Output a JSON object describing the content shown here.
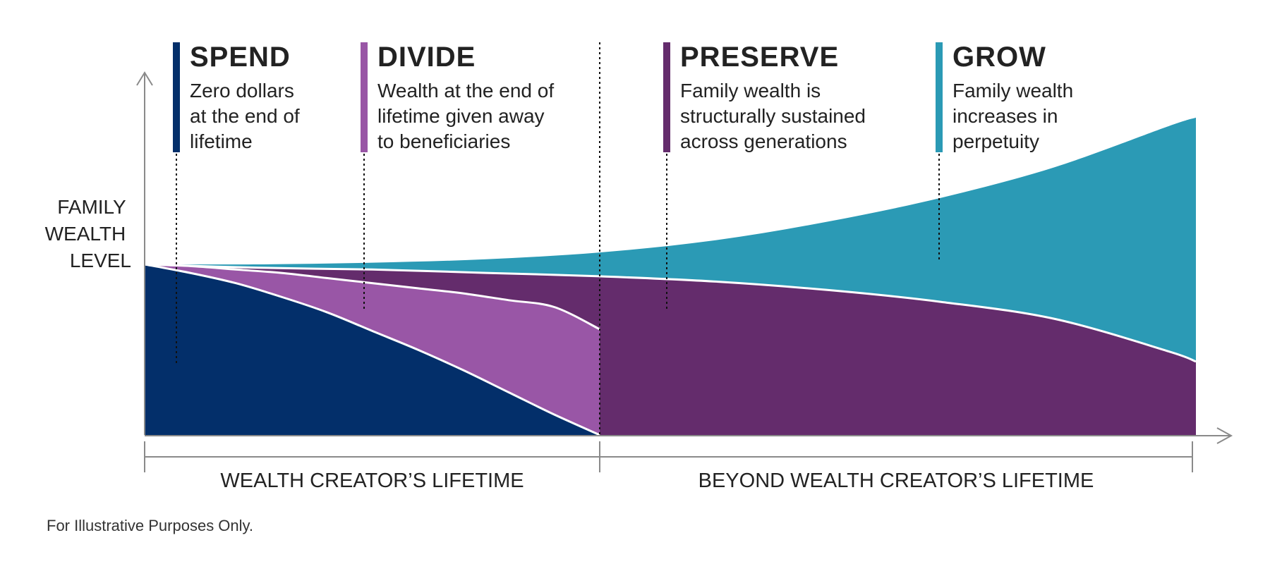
{
  "chart_data": {
    "type": "area",
    "ylabel": [
      "FAMILY",
      "WEALTH",
      "LEVEL"
    ],
    "phases": [
      {
        "title": "WEALTH CREATOR’S LIFETIME"
      },
      {
        "title": "BEYOND WEALTH CREATOR’S LIFETIME"
      }
    ],
    "strategies": [
      {
        "name": "SPEND",
        "lines": [
          "Zero dollars",
          "at the end of",
          "lifetime"
        ],
        "color": "#032f6a",
        "x": [
          0,
          0.1,
          0.2,
          0.3,
          0.4,
          0.5,
          0.6,
          0.7,
          0.8,
          0.9,
          1.0
        ],
        "y": [
          1.0,
          0.95,
          0.89,
          0.81,
          0.72,
          0.61,
          0.5,
          0.38,
          0.25,
          0.12,
          0
        ]
      },
      {
        "name": "DIVIDE",
        "lines": [
          "Wealth at the end of",
          "lifetime given away",
          "to beneficiaries"
        ],
        "color": "#9956a6",
        "x": [
          0,
          0.1,
          0.2,
          0.3,
          0.4,
          0.5,
          0.6,
          0.7,
          0.8,
          0.9,
          1.0
        ],
        "y": [
          1.0,
          0.99,
          0.97,
          0.95,
          0.92,
          0.89,
          0.86,
          0.83,
          0.79,
          0.75,
          0.62
        ]
      },
      {
        "name": "PRESERVE",
        "lines": [
          "Family wealth is",
          "structurally sustained",
          "across generations"
        ],
        "color": "#642c6c",
        "x": [
          0,
          0.25,
          0.5,
          0.75,
          1.0,
          1.25,
          1.5,
          1.75,
          2.0,
          2.25,
          2.31
        ],
        "y": [
          1.0,
          0.98,
          0.97,
          0.95,
          0.93,
          0.9,
          0.85,
          0.78,
          0.68,
          0.49,
          0.43
        ]
      },
      {
        "name": "GROW",
        "lines": [
          "Family wealth",
          "increases in",
          "perpetuity"
        ],
        "color": "#2b9ab5",
        "x": [
          0,
          0.25,
          0.5,
          0.75,
          1.0,
          1.25,
          1.5,
          1.75,
          2.0,
          2.25,
          2.31
        ],
        "y": [
          1.0,
          1.0,
          1.01,
          1.03,
          1.07,
          1.14,
          1.25,
          1.39,
          1.57,
          1.81,
          1.86
        ]
      }
    ]
  },
  "footnote": "For Illustrative Purposes Only."
}
